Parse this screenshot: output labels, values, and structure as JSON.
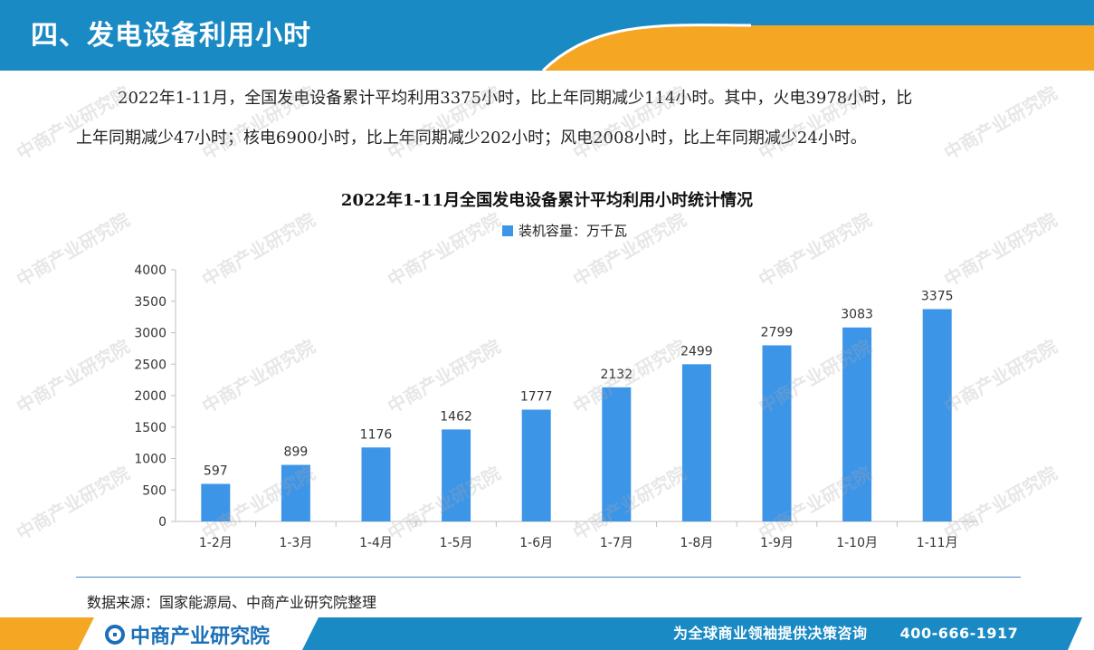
{
  "header": {
    "title": "四、发电设备利用小时"
  },
  "text": {
    "line1": "2022年1-11月，全国发电设备累计平均利用3375小时，比上年同期减少114小时。其中，火电3978小时，比",
    "line2": "上年同期减少47小时；核电6900小时，比上年同期减少202小时；风电2008小时，比上年同期减少24小时。"
  },
  "chart_data": {
    "type": "bar",
    "title": "2022年1-11月全国发电设备累计平均利用小时统计情况",
    "categories": [
      "1-2月",
      "1-3月",
      "1-4月",
      "1-5月",
      "1-6月",
      "1-7月",
      "1-8月",
      "1-9月",
      "1-10月",
      "1-11月"
    ],
    "series": [
      {
        "name": "装机容量：万千瓦",
        "values": [
          597,
          899,
          1176,
          1462,
          1777,
          2132,
          2499,
          2799,
          3083,
          3375
        ],
        "color": "#3d95e8"
      }
    ],
    "ylim": [
      0,
      4000
    ],
    "yticks": [
      0,
      500,
      1000,
      1500,
      2000,
      2500,
      3000,
      3500,
      4000
    ],
    "legend_position": "top-center",
    "grid": false
  },
  "footer": {
    "source": "数据来源：国家能源局、中商产业研究院整理",
    "logo": "中商产业研究院",
    "slogan": "为全球商业领袖提供决策咨询",
    "phone": "400-666-1917"
  },
  "watermark": {
    "text": "中商产业研究院"
  },
  "colors": {
    "header_blue": "#1a8ac4",
    "accent_orange": "#f5a623",
    "bar_blue": "#3d95e8"
  }
}
